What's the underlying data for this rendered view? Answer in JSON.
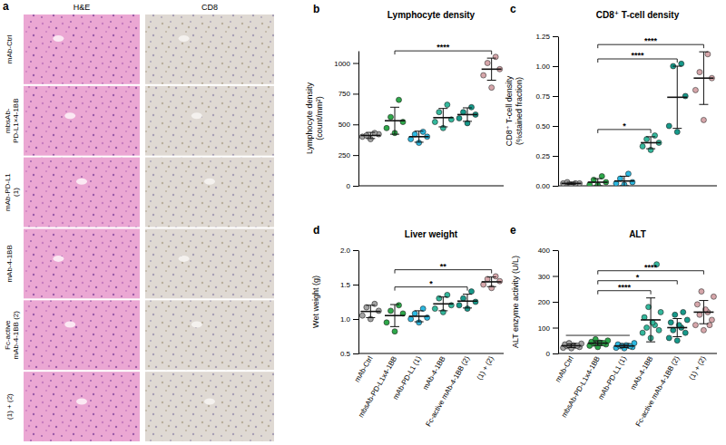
{
  "panel_a": {
    "label": "a",
    "columns": [
      "H&E",
      "CD8"
    ],
    "rows": [
      [
        "mAb-Ctrl"
      ],
      [
        "mbsAb-",
        "PD-L1×4-1BB"
      ],
      [
        "mAb-PD-L1",
        "(1)"
      ],
      [
        "mAb-4-1BB"
      ],
      [
        "Fc-active",
        "mAb-4-1BB (2)"
      ],
      [
        "(1) + (2)"
      ]
    ]
  },
  "chart_data": [
    {
      "type": "dot",
      "panel_label": "b",
      "title": "Lymphocyte density",
      "ylabel": [
        "Lymphocyte density",
        "(count/mm²)"
      ],
      "categories": [
        "mAb-Ctrl",
        "mbsAb-PD-L1x4-1BB",
        "mAb-PD-L1 (1)",
        "mAb-4-1BB",
        "Fc-active mAb-4-1BB (2)",
        "(1) + (2)"
      ],
      "colors": [
        "#a3a3a3",
        "#2ea84a",
        "#2bb8e0",
        "#33b89c",
        "#16998a",
        "#d6a6aa"
      ],
      "values": [
        410,
        530,
        400,
        555,
        580,
        950
      ],
      "error": [
        25,
        110,
        45,
        75,
        55,
        90
      ],
      "points": [
        [
          380,
          400,
          420,
          410,
          430
        ],
        [
          430,
          470,
          520,
          560,
          700
        ],
        [
          350,
          380,
          400,
          420,
          440
        ],
        [
          470,
          520,
          540,
          600,
          660
        ],
        [
          510,
          550,
          580,
          600,
          640
        ],
        [
          800,
          900,
          950,
          1000,
          1050
        ]
      ],
      "annotations": [
        {
          "groups": [
            1
          ],
          "vs": 5,
          "text": "****"
        }
      ],
      "ylim": [
        0,
        1100
      ],
      "yticks": [
        0,
        250,
        500,
        750,
        1000
      ],
      "tick_labels": "y"
    },
    {
      "type": "dot",
      "panel_label": "c",
      "title": "CD8⁺ T-cell density",
      "ylabel": [
        "CD8⁺ T-cell density",
        "(%stained fraction)"
      ],
      "categories": [
        "mAb-Ctrl",
        "mbsAb-PD-L1x4-1BB",
        "mAb-PD-L1 (1)",
        "mAb-4-1BB",
        "Fc-active mAb-4-1BB (2)",
        "(1) + (2)"
      ],
      "colors": [
        "#a3a3a3",
        "#2ea84a",
        "#2bb8e0",
        "#33b89c",
        "#16998a",
        "#d6a6aa"
      ],
      "values": [
        0.02,
        0.03,
        0.04,
        0.36,
        0.74,
        0.9
      ],
      "error": [
        0.01,
        0.03,
        0.04,
        0.05,
        0.26,
        0.22
      ],
      "points": [
        [
          0.01,
          0.02,
          0.02,
          0.03,
          0.02
        ],
        [
          0.005,
          0.01,
          0.03,
          0.05,
          0.08
        ],
        [
          0.01,
          0.02,
          0.03,
          0.06,
          0.1
        ],
        [
          0.3,
          0.33,
          0.36,
          0.39,
          0.42
        ],
        [
          0.45,
          0.5,
          0.75,
          1.0,
          1.02
        ],
        [
          0.55,
          0.8,
          0.9,
          0.95,
          1.1
        ]
      ],
      "annotations": [
        {
          "groups": [
            1
          ],
          "vs": 3,
          "text": "*"
        },
        {
          "groups": [
            1
          ],
          "vs": 4,
          "text": "****"
        },
        {
          "groups": [
            1
          ],
          "vs": 5,
          "text": "****"
        }
      ],
      "ylim": [
        0,
        1.25
      ],
      "yticks": [
        {
          "value": 0,
          "label": "0.00"
        },
        {
          "value": 0.25,
          "label": "0.25"
        },
        {
          "value": 0.5,
          "label": "0.50"
        },
        {
          "value": 0.75,
          "label": "0.75"
        },
        {
          "value": 1,
          "label": "1.00"
        },
        {
          "value": 1.25,
          "label": "1.25"
        }
      ],
      "tick_labels": "y"
    },
    {
      "type": "dot",
      "panel_label": "d",
      "title": "Liver weight",
      "ylabel": [
        "Wet weight (g)"
      ],
      "categories": [
        "mAb-Ctrl",
        "mbsAb-PD-L1x4-1BB",
        "mAb-PD-L1 (1)",
        "mAb-4-1BB",
        "Fc-active mAb-4-1BB (2)",
        "(1) + (2)"
      ],
      "colors": [
        "#a3a3a3",
        "#2ea84a",
        "#2bb8e0",
        "#33b89c",
        "#16998a",
        "#d6a6aa"
      ],
      "values": [
        1.11,
        1.05,
        1.04,
        1.22,
        1.26,
        1.54
      ],
      "error": [
        0.09,
        0.16,
        0.08,
        0.1,
        0.1,
        0.07
      ],
      "points": [
        [
          1.0,
          1.05,
          1.12,
          1.17,
          1.22
        ],
        [
          0.82,
          0.95,
          1.08,
          1.12,
          1.2
        ],
        [
          0.95,
          1.0,
          1.02,
          1.08,
          1.15
        ],
        [
          1.1,
          1.15,
          1.2,
          1.3,
          1.35
        ],
        [
          1.15,
          1.2,
          1.25,
          1.3,
          1.4
        ],
        [
          1.45,
          1.5,
          1.55,
          1.58,
          1.62
        ]
      ],
      "annotations": [
        {
          "groups": [
            1
          ],
          "vs": 4,
          "text": "*"
        },
        {
          "groups": [
            1
          ],
          "vs": 5,
          "text": "**"
        }
      ],
      "ylim": [
        0.5,
        2.0
      ],
      "yticks": [
        0.5,
        {
          "value": 1,
          "label": "1.0"
        },
        1.5,
        {
          "value": 2,
          "label": "2.0"
        }
      ]
    },
    {
      "type": "dot",
      "panel_label": "e",
      "title": "ALT",
      "ylabel": [
        "ALT enzyme activity (U/L)"
      ],
      "categories": [
        "mAb-Ctrl",
        "mbsAb-PD-L1x4-1BB",
        "mAb-PD-L1 (1)",
        "mAb-4-1BB",
        "Fc-active mAb-4-1BB (2)",
        "(1) + (2)"
      ],
      "colors": [
        "#a3a3a3",
        "#2ea84a",
        "#2bb8e0",
        "#33b89c",
        "#16998a",
        "#d6a6aa"
      ],
      "values": [
        30,
        40,
        29,
        130,
        100,
        160
      ],
      "error": [
        7,
        9,
        6,
        85,
        35,
        45
      ],
      "points": [
        [
          20,
          22,
          25,
          28,
          30,
          32,
          35,
          38,
          40,
          30
        ],
        [
          25,
          30,
          35,
          38,
          40,
          42,
          45,
          50,
          55,
          40
        ],
        [
          20,
          22,
          25,
          28,
          30,
          32,
          35,
          40,
          30,
          28
        ],
        [
          60,
          80,
          90,
          100,
          110,
          120,
          140,
          160,
          180,
          345
        ],
        [
          50,
          60,
          80,
          90,
          100,
          110,
          120,
          130,
          150,
          160
        ],
        [
          90,
          110,
          130,
          150,
          160,
          170,
          190,
          220,
          240,
          110
        ]
      ],
      "annotations": [
        {
          "groups": [
            0,
            1,
            2
          ],
          "vs": 3,
          "text": "****"
        },
        {
          "groups": [
            0,
            1,
            2
          ],
          "vs": 4,
          "text": "*"
        },
        {
          "groups": [
            0,
            1,
            2
          ],
          "vs": 5,
          "text": "****"
        }
      ],
      "ylim": [
        0,
        400
      ],
      "yticks": [
        0,
        100,
        200,
        300,
        400
      ]
    }
  ]
}
